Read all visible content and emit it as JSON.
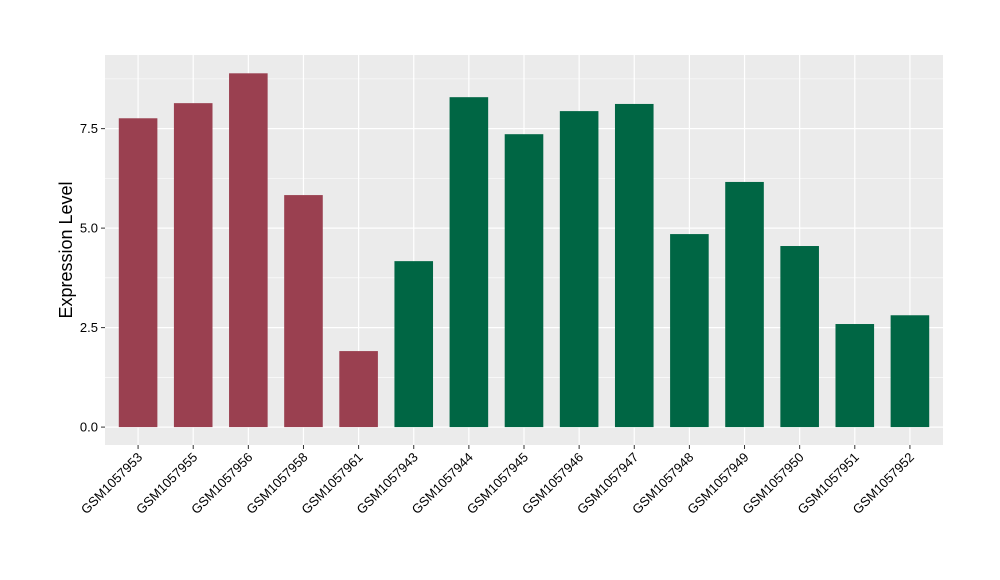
{
  "chart_data": {
    "type": "bar",
    "title": "",
    "xlabel": "",
    "ylabel": "Expression Level",
    "ylim": [
      -0.45,
      9.35
    ],
    "yticks": [
      0.0,
      2.5,
      5.0,
      7.5
    ],
    "ytick_labels": [
      "0.0",
      "2.5",
      "5.0",
      "7.5"
    ],
    "grid": true,
    "categories": [
      "GSM1057953",
      "GSM1057955",
      "GSM1057956",
      "GSM1057958",
      "GSM1057961",
      "GSM1057943",
      "GSM1057944",
      "GSM1057945",
      "GSM1057946",
      "GSM1057947",
      "GSM1057948",
      "GSM1057949",
      "GSM1057950",
      "GSM1057951",
      "GSM1057952"
    ],
    "values": [
      7.76,
      8.14,
      8.89,
      5.83,
      1.91,
      4.17,
      8.29,
      7.36,
      7.94,
      8.12,
      4.85,
      6.16,
      4.55,
      2.59,
      2.81
    ],
    "groups": [
      "a",
      "a",
      "a",
      "a",
      "a",
      "b",
      "b",
      "b",
      "b",
      "b",
      "b",
      "b",
      "b",
      "b",
      "b"
    ],
    "colors": {
      "a": "#9a4050",
      "b": "#006644"
    },
    "panel_background": "#ebebeb",
    "grid_color": "#ffffff"
  }
}
